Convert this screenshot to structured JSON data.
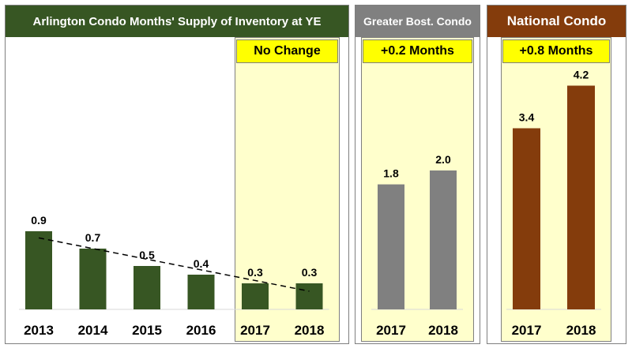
{
  "colors": {
    "arlington": "#375623",
    "greater": "#808080",
    "national": "#843c0c",
    "highlight_fill": "#ffffcc",
    "note_fill": "#ffff00"
  },
  "panels": {
    "arlington": {
      "title": "Arlington Condo Months' Supply of Inventory at YE",
      "note": "No Change"
    },
    "greater": {
      "title": "Greater Bost. Condo",
      "note": "+0.2 Months"
    },
    "national": {
      "title": "National Condo",
      "note": "+0.8 Months"
    }
  },
  "chart_data": [
    {
      "type": "bar",
      "title": "Arlington Condo Months' Supply of Inventory at YE",
      "categories": [
        "2013",
        "2014",
        "2015",
        "2016",
        "2017",
        "2018"
      ],
      "values": [
        0.9,
        0.7,
        0.5,
        0.4,
        0.3,
        0.3
      ],
      "data_labels": [
        "0.9",
        "0.7",
        "0.5",
        "0.4",
        "0.3",
        "0.3"
      ],
      "trendline": "linear, dashed",
      "highlighted_categories": [
        "2017",
        "2018"
      ],
      "color": "#375623"
    },
    {
      "type": "bar",
      "title": "Greater Bost. Condo",
      "categories": [
        "2017",
        "2018"
      ],
      "values": [
        1.8,
        2.0
      ],
      "data_labels": [
        "1.8",
        "2.0"
      ],
      "color": "#808080"
    },
    {
      "type": "bar",
      "title": "National Condo",
      "categories": [
        "2017",
        "2018"
      ],
      "values": [
        3.4,
        4.2
      ],
      "data_labels": [
        "3.4",
        "4.2"
      ],
      "color": "#843c0c"
    }
  ]
}
